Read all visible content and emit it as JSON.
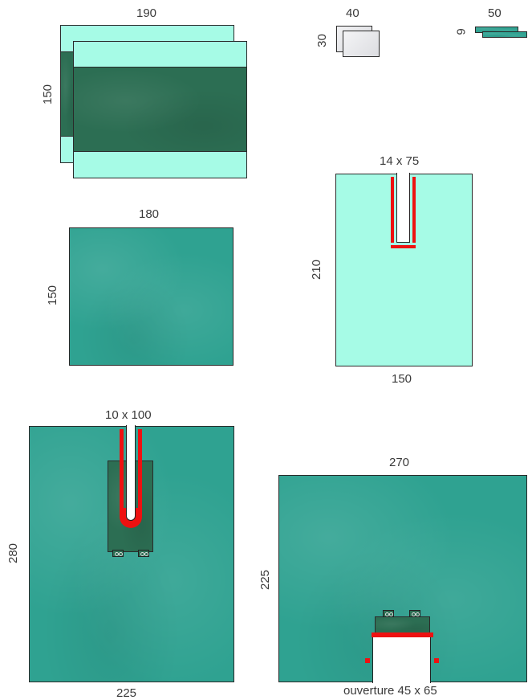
{
  "colors": {
    "mint": "#a6fbe6",
    "drape_green": "#2fa291",
    "dark_green": "#2c6e53",
    "adhesive_red": "#ee1111",
    "label_text": "#3a3a3a"
  },
  "items": {
    "double_drape": {
      "width_label": "190",
      "height_label": "150"
    },
    "gauze": {
      "width_label": "40",
      "height_label": "30"
    },
    "strip": {
      "width_label": "50",
      "height_label": "9"
    },
    "drape_sheet": {
      "width_label": "180",
      "height_label": "150"
    },
    "u_drape": {
      "slot_label": "14 x 75",
      "height_label": "210",
      "width_label": "150"
    },
    "split_drape": {
      "slot_label": "10 x 100",
      "height_label": "280",
      "width_label": "225"
    },
    "opening_drape": {
      "width_label": "270",
      "height_label": "225",
      "opening_label": "ouverture 45 x 65"
    }
  }
}
